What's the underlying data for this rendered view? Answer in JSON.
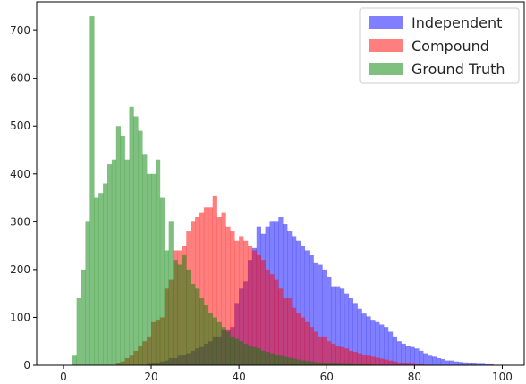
{
  "chart_data": {
    "type": "bar",
    "title": "",
    "xlabel": "",
    "ylabel": "",
    "xlim": [
      -6.1,
      105
    ],
    "ylim": [
      0,
      760
    ],
    "bin_width": 1,
    "x_ticks": [
      "0",
      "20",
      "40",
      "60",
      "80",
      "100"
    ],
    "y_ticks": [
      "0",
      "100",
      "200",
      "300",
      "400",
      "500",
      "600",
      "700"
    ],
    "legend_position": "top-right",
    "series": [
      {
        "name": "Independent",
        "color": "#0000ff",
        "opacity": 0.5,
        "bin_start": 2,
        "values": [
          0,
          0,
          0,
          0,
          0,
          0,
          0,
          0,
          0,
          0,
          0,
          0,
          0,
          0,
          0,
          0,
          0,
          3,
          5,
          5,
          8,
          10,
          15,
          15,
          20,
          22,
          25,
          30,
          35,
          38,
          45,
          50,
          60,
          60,
          75,
          75,
          80,
          130,
          160,
          175,
          220,
          245,
          290,
          275,
          290,
          300,
          300,
          310,
          295,
          280,
          270,
          260,
          250,
          240,
          230,
          215,
          210,
          200,
          185,
          165,
          165,
          160,
          150,
          140,
          130,
          118,
          108,
          102,
          95,
          90,
          85,
          80,
          70,
          60,
          50,
          45,
          40,
          38,
          35,
          30,
          25,
          20,
          18,
          15,
          13,
          10,
          10,
          8,
          7,
          6,
          5,
          4,
          3,
          3,
          2,
          2,
          1,
          1,
          1
        ]
      },
      {
        "name": "Compound",
        "color": "#ff0000",
        "opacity": 0.5,
        "bin_start": 2,
        "values": [
          0,
          0,
          0,
          0,
          0,
          0,
          0,
          0,
          0,
          0,
          5,
          8,
          15,
          20,
          30,
          40,
          50,
          60,
          90,
          95,
          100,
          160,
          180,
          240,
          240,
          250,
          280,
          300,
          310,
          320,
          330,
          330,
          355,
          310,
          320,
          290,
          280,
          260,
          270,
          260,
          250,
          240,
          230,
          220,
          200,
          190,
          180,
          160,
          140,
          140,
          120,
          110,
          100,
          90,
          80,
          70,
          60,
          60,
          50,
          45,
          40,
          38,
          35,
          30,
          28,
          25,
          22,
          20,
          18,
          16,
          14,
          12,
          10,
          8,
          6,
          5,
          4,
          3,
          2,
          2,
          1,
          1,
          0,
          0,
          0,
          0,
          0,
          0,
          0,
          0,
          0,
          0,
          0,
          0,
          0,
          0,
          0,
          0,
          0
        ]
      },
      {
        "name": "Ground Truth",
        "color": "#008000",
        "opacity": 0.5,
        "bin_start": 2,
        "values": [
          20,
          140,
          200,
          300,
          730,
          350,
          360,
          380,
          420,
          430,
          500,
          480,
          430,
          540,
          520,
          490,
          440,
          400,
          400,
          430,
          350,
          240,
          300,
          220,
          210,
          230,
          200,
          170,
          160,
          140,
          125,
          110,
          100,
          90,
          80,
          70,
          60,
          55,
          50,
          45,
          40,
          38,
          35,
          30,
          28,
          25,
          22,
          20,
          18,
          16,
          14,
          12,
          10,
          9,
          8,
          7,
          6,
          5,
          5,
          4,
          4,
          3,
          3,
          3,
          2,
          2,
          2,
          2,
          1,
          1,
          1,
          1,
          1,
          0,
          0,
          0,
          0,
          0,
          0,
          0,
          0,
          0,
          0,
          0,
          0,
          0,
          0,
          0,
          0,
          0,
          0,
          0,
          0,
          0,
          0,
          0,
          0,
          0,
          0
        ]
      }
    ]
  }
}
